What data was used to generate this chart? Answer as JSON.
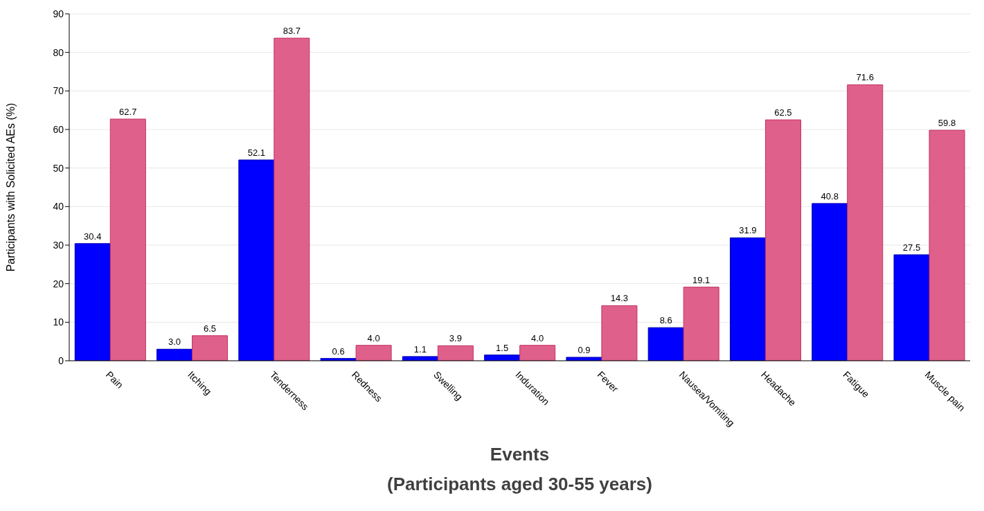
{
  "chart_data": {
    "type": "bar",
    "xlabel": "Events\n(Participants aged 30-55 years)",
    "ylabel": "Participants with Solicited AEs (%)",
    "categories": [
      "Pain",
      "Itching",
      "Tenderness",
      "Redness",
      "Swelling",
      "Induration",
      "Fever",
      "Nausea/Vomiting",
      "Headache",
      "Fatigue",
      "Muscle pain"
    ],
    "series": [
      {
        "color": "#0000ff",
        "values": [
          30.4,
          3.0,
          52.1,
          0.6,
          1.1,
          1.5,
          0.9,
          8.6,
          31.9,
          40.8,
          27.5
        ]
      },
      {
        "color": "#e0608c",
        "values": [
          62.7,
          6.5,
          83.7,
          4.0,
          3.9,
          4.0,
          14.3,
          19.1,
          62.5,
          71.6,
          59.8
        ]
      }
    ],
    "value_labels": [
      [
        "30.4",
        "3.0",
        "52.1",
        "0.6",
        "1.1",
        "1.5",
        "0.9",
        "8.6",
        "31.9",
        "40.8",
        "27.5"
      ],
      [
        "62.7",
        "6.5",
        "83.7",
        "4.0",
        "3.9",
        "4.0",
        "14.3",
        "19.1",
        "62.5",
        "71.6",
        "59.8"
      ]
    ],
    "ylim": [
      0,
      90
    ],
    "yticks": [
      0,
      10,
      20,
      30,
      40,
      50,
      60,
      70,
      80,
      90
    ],
    "grid": "y",
    "legend": false
  }
}
